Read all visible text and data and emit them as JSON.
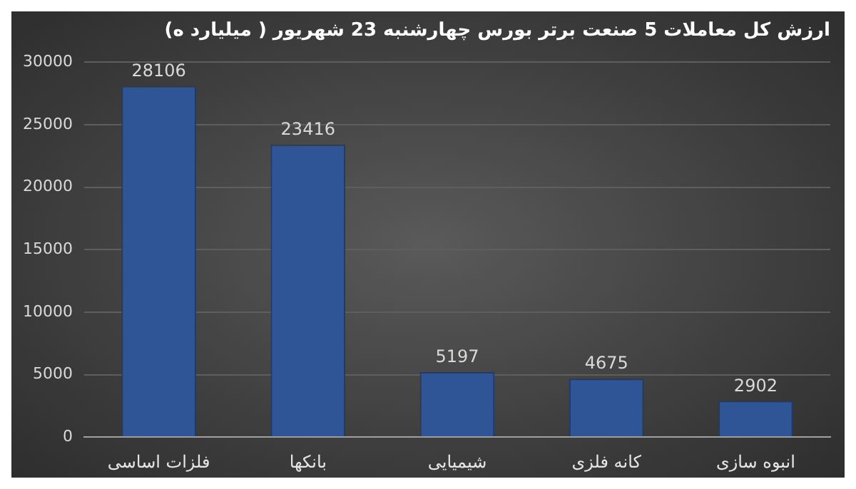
{
  "chart_data": {
    "type": "bar",
    "title": "ارزش کل معاملات 5 صنعت برتر بورس چهارشنبه 23 شهریور ( میلیارد ه)",
    "categories": [
      "فلزات اساسی",
      "بانکها",
      "شیمیایی",
      "کانه فلزی",
      "انبوه سازی"
    ],
    "values": [
      28106,
      23416,
      5197,
      4675,
      2902
    ],
    "color": "#2f5597",
    "ylim": [
      0,
      30000
    ],
    "yticks": [
      0,
      5000,
      10000,
      15000,
      20000,
      25000,
      30000
    ],
    "grid": "y",
    "data_labels": true
  }
}
